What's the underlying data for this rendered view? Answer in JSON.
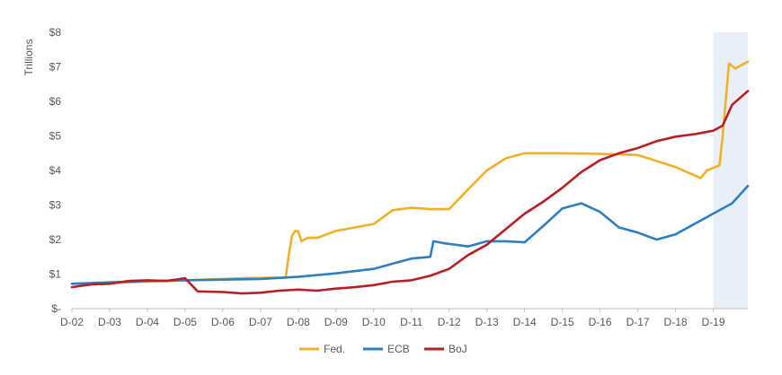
{
  "chart_data": {
    "type": "line",
    "title": "",
    "ylabel": "Trillions",
    "xlabel": "",
    "ylim": [
      0,
      8
    ],
    "x_range": [
      "2002-12",
      "2019-12"
    ],
    "yticks": [
      {
        "value": 0,
        "label": "$-"
      },
      {
        "value": 1,
        "label": "$1"
      },
      {
        "value": 2,
        "label": "$2"
      },
      {
        "value": 3,
        "label": "$3"
      },
      {
        "value": 4,
        "label": "$4"
      },
      {
        "value": 5,
        "label": "$5"
      },
      {
        "value": 6,
        "label": "$6"
      },
      {
        "value": 7,
        "label": "$7"
      },
      {
        "value": 8,
        "label": "$8"
      }
    ],
    "xticks": [
      {
        "value": "2002-12",
        "label": "D-02"
      },
      {
        "value": "2003-12",
        "label": "D-03"
      },
      {
        "value": "2004-12",
        "label": "D-04"
      },
      {
        "value": "2005-12",
        "label": "D-05"
      },
      {
        "value": "2006-12",
        "label": "D-06"
      },
      {
        "value": "2007-12",
        "label": "D-07"
      },
      {
        "value": "2008-12",
        "label": "D-08"
      },
      {
        "value": "2009-12",
        "label": "D-09"
      },
      {
        "value": "2010-12",
        "label": "D-10"
      },
      {
        "value": "2011-12",
        "label": "D-11"
      },
      {
        "value": "2012-12",
        "label": "D-12"
      },
      {
        "value": "2013-12",
        "label": "D-13"
      },
      {
        "value": "2014-12",
        "label": "D-14"
      },
      {
        "value": "2015-12",
        "label": "D-15"
      },
      {
        "value": "2016-12",
        "label": "D-16"
      },
      {
        "value": "2017-12",
        "label": "D-17"
      },
      {
        "value": "2018-12",
        "label": "D-18"
      },
      {
        "value": "2019-12",
        "label": "D-19"
      }
    ],
    "shaded_region": {
      "start": "2019-12",
      "end": "2020-11",
      "color": "#e9eff9"
    },
    "grid": false,
    "legend_position": "bottom",
    "series": [
      {
        "name": "Fed.",
        "color": "#f0b02a",
        "points": [
          [
            "2002-12",
            0.72
          ],
          [
            "2003-12",
            0.74
          ],
          [
            "2004-12",
            0.78
          ],
          [
            "2005-12",
            0.82
          ],
          [
            "2006-12",
            0.86
          ],
          [
            "2007-06",
            0.88
          ],
          [
            "2008-08",
            0.9
          ],
          [
            "2008-09",
            1.55
          ],
          [
            "2008-10",
            2.1
          ],
          [
            "2008-11",
            2.25
          ],
          [
            "2008-12",
            2.24
          ],
          [
            "2009-01",
            1.95
          ],
          [
            "2009-03",
            2.05
          ],
          [
            "2009-06",
            2.05
          ],
          [
            "2009-12",
            2.25
          ],
          [
            "2010-06",
            2.35
          ],
          [
            "2010-12",
            2.45
          ],
          [
            "2011-06",
            2.85
          ],
          [
            "2011-12",
            2.92
          ],
          [
            "2012-06",
            2.88
          ],
          [
            "2012-12",
            2.88
          ],
          [
            "2013-06",
            3.45
          ],
          [
            "2013-12",
            4.0
          ],
          [
            "2014-06",
            4.35
          ],
          [
            "2014-12",
            4.5
          ],
          [
            "2015-12",
            4.5
          ],
          [
            "2016-12",
            4.48
          ],
          [
            "2017-12",
            4.45
          ],
          [
            "2018-12",
            4.1
          ],
          [
            "2019-08",
            3.78
          ],
          [
            "2019-10",
            4.0
          ],
          [
            "2020-02",
            4.15
          ],
          [
            "2020-03",
            5.0
          ],
          [
            "2020-05",
            7.1
          ],
          [
            "2020-07",
            6.95
          ],
          [
            "2020-11",
            7.15
          ]
        ]
      },
      {
        "name": "ECB",
        "color": "#2f7fbf",
        "points": [
          [
            "2002-12",
            0.72
          ],
          [
            "2003-12",
            0.76
          ],
          [
            "2004-12",
            0.8
          ],
          [
            "2005-12",
            0.82
          ],
          [
            "2006-12",
            0.84
          ],
          [
            "2007-12",
            0.86
          ],
          [
            "2008-12",
            0.92
          ],
          [
            "2009-12",
            1.02
          ],
          [
            "2010-12",
            1.15
          ],
          [
            "2011-06",
            1.3
          ],
          [
            "2011-12",
            1.45
          ],
          [
            "2012-06",
            1.5
          ],
          [
            "2012-07",
            1.95
          ],
          [
            "2012-10",
            1.9
          ],
          [
            "2013-06",
            1.8
          ],
          [
            "2013-12",
            1.95
          ],
          [
            "2014-06",
            1.95
          ],
          [
            "2014-12",
            1.92
          ],
          [
            "2015-06",
            2.4
          ],
          [
            "2015-12",
            2.9
          ],
          [
            "2016-06",
            3.05
          ],
          [
            "2016-12",
            2.8
          ],
          [
            "2017-06",
            2.35
          ],
          [
            "2017-12",
            2.2
          ],
          [
            "2018-06",
            2.0
          ],
          [
            "2018-12",
            2.15
          ],
          [
            "2019-06",
            2.45
          ],
          [
            "2019-12",
            2.75
          ],
          [
            "2020-06",
            3.05
          ],
          [
            "2020-11",
            3.55
          ]
        ]
      },
      {
        "name": "BoJ",
        "color": "#b81f25",
        "points": [
          [
            "2002-12",
            0.62
          ],
          [
            "2003-06",
            0.7
          ],
          [
            "2003-12",
            0.72
          ],
          [
            "2004-06",
            0.8
          ],
          [
            "2004-12",
            0.82
          ],
          [
            "2005-06",
            0.8
          ],
          [
            "2005-12",
            0.88
          ],
          [
            "2006-04",
            0.5
          ],
          [
            "2006-12",
            0.48
          ],
          [
            "2007-06",
            0.44
          ],
          [
            "2007-12",
            0.46
          ],
          [
            "2008-06",
            0.52
          ],
          [
            "2008-12",
            0.55
          ],
          [
            "2009-06",
            0.52
          ],
          [
            "2009-12",
            0.58
          ],
          [
            "2010-06",
            0.62
          ],
          [
            "2010-12",
            0.68
          ],
          [
            "2011-06",
            0.78
          ],
          [
            "2011-12",
            0.82
          ],
          [
            "2012-06",
            0.95
          ],
          [
            "2012-12",
            1.15
          ],
          [
            "2013-06",
            1.55
          ],
          [
            "2013-12",
            1.85
          ],
          [
            "2014-06",
            2.3
          ],
          [
            "2014-12",
            2.75
          ],
          [
            "2015-06",
            3.1
          ],
          [
            "2015-12",
            3.5
          ],
          [
            "2016-06",
            3.95
          ],
          [
            "2016-12",
            4.3
          ],
          [
            "2017-06",
            4.5
          ],
          [
            "2017-12",
            4.65
          ],
          [
            "2018-06",
            4.85
          ],
          [
            "2018-12",
            4.98
          ],
          [
            "2019-06",
            5.05
          ],
          [
            "2019-12",
            5.15
          ],
          [
            "2020-03",
            5.3
          ],
          [
            "2020-06",
            5.9
          ],
          [
            "2020-11",
            6.3
          ]
        ]
      }
    ]
  }
}
